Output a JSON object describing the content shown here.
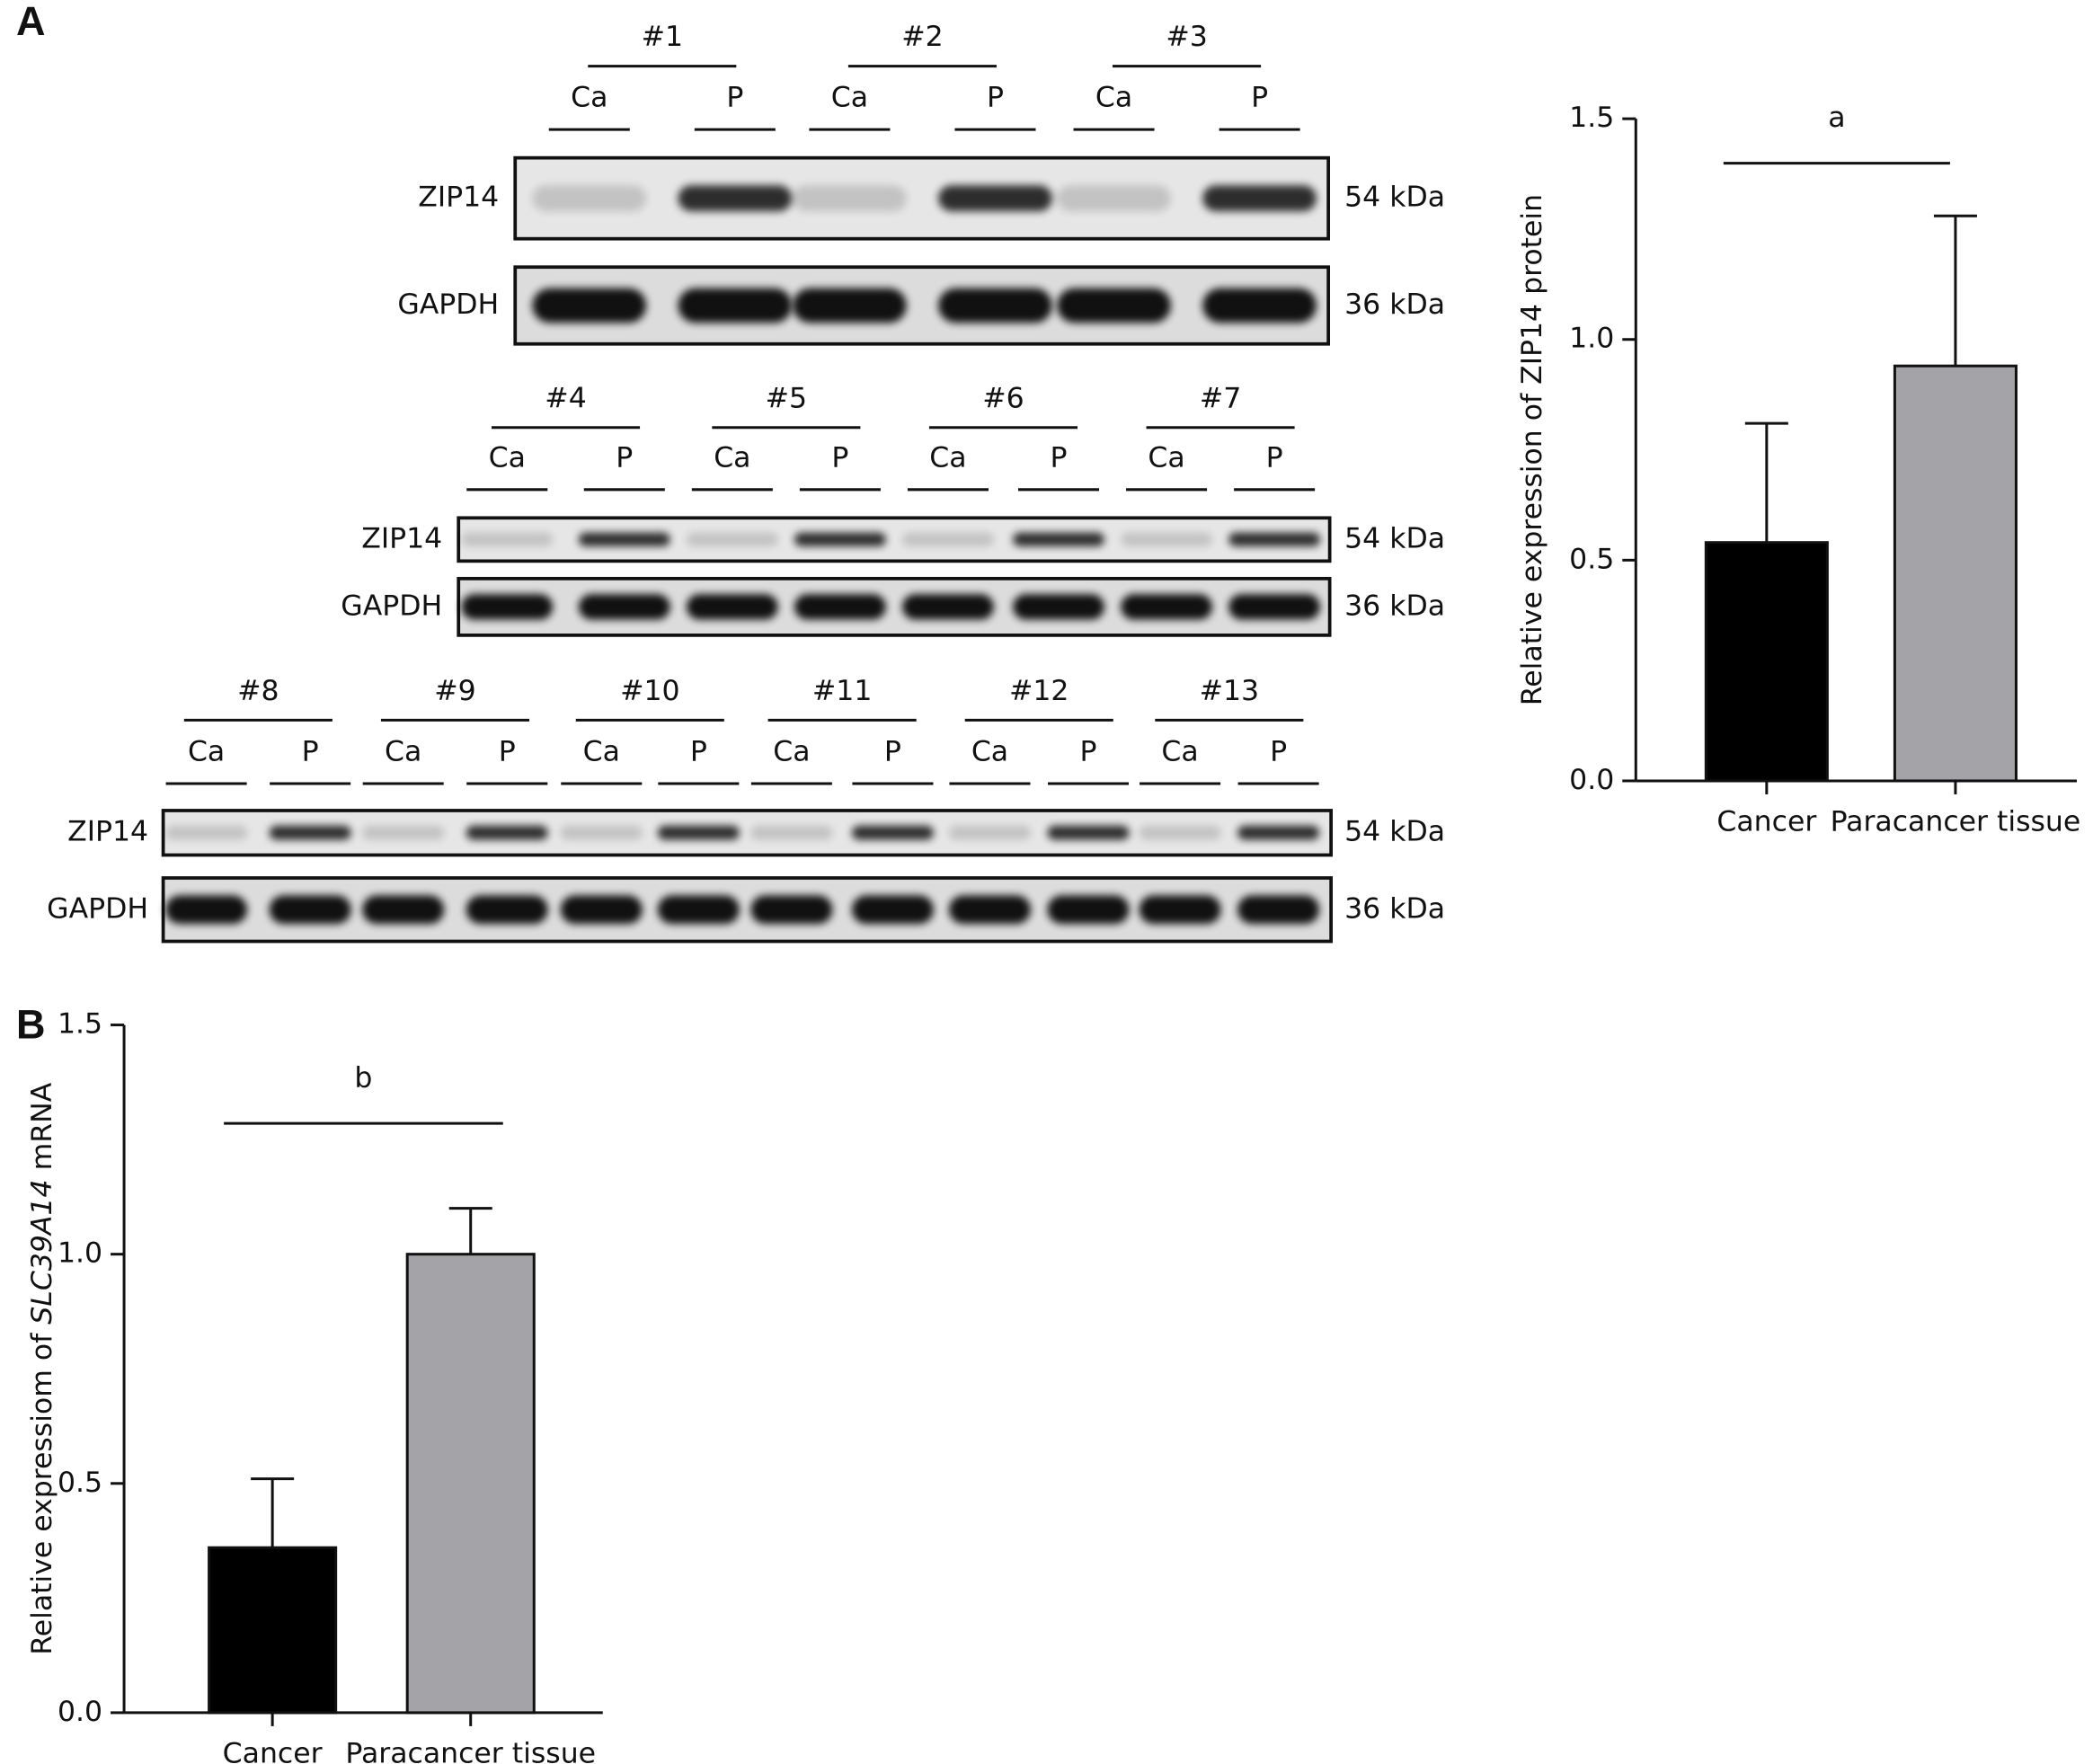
{
  "panels": [
    "A",
    "B"
  ],
  "blots": [
    {
      "samples": [
        {
          "name": "#1",
          "lanes": [
            "Ca",
            "P"
          ]
        },
        {
          "name": "#2",
          "lanes": [
            "Ca",
            "P"
          ]
        },
        {
          "name": "#3",
          "lanes": [
            "Ca",
            "P"
          ]
        }
      ],
      "proteins": [
        "ZIP14",
        "GAPDH"
      ],
      "sizes": [
        "54 kDa",
        "36 kDa"
      ]
    },
    {
      "samples": [
        {
          "name": "#4",
          "lanes": [
            "Ca",
            "P"
          ]
        },
        {
          "name": "#5",
          "lanes": [
            "Ca",
            "P"
          ]
        },
        {
          "name": "#6",
          "lanes": [
            "Ca",
            "P"
          ]
        },
        {
          "name": "#7",
          "lanes": [
            "Ca",
            "P"
          ]
        }
      ],
      "proteins": [
        "ZIP14",
        "GAPDH"
      ],
      "sizes": [
        "54 kDa",
        "36 kDa"
      ]
    },
    {
      "samples": [
        {
          "name": "#8",
          "lanes": [
            "Ca",
            "P"
          ]
        },
        {
          "name": "#9",
          "lanes": [
            "Ca",
            "P"
          ]
        },
        {
          "name": "#10",
          "lanes": [
            "Ca",
            "P"
          ]
        },
        {
          "name": "#11",
          "lanes": [
            "Ca",
            "P"
          ]
        },
        {
          "name": "#12",
          "lanes": [
            "Ca",
            "P"
          ]
        },
        {
          "name": "#13",
          "lanes": [
            "Ca",
            "P"
          ]
        }
      ],
      "proteins": [
        "ZIP14",
        "GAPDH"
      ],
      "sizes": [
        "54 kDa",
        "36 kDa"
      ]
    }
  ],
  "chart_data": [
    {
      "type": "bar",
      "y_label": [
        "Relative expression of ZIP14 protein"
      ],
      "annotation": "a",
      "categories": [
        "Cancer",
        "Paracancer tissue"
      ],
      "values": [
        0.54,
        0.94
      ],
      "errors": [
        0.27,
        0.34
      ],
      "colors": [
        "#000000",
        "#a3a3a8"
      ],
      "ylim": [
        0,
        1.5
      ],
      "yticks": [
        {
          "value": 0,
          "label": "0.0"
        },
        0.5,
        {
          "value": 1,
          "label": "1.0"
        },
        1.5
      ]
    },
    {
      "type": "bar",
      "y_label": [
        "Relative expressiom of ",
        "SLC39A14",
        " mRNA"
      ],
      "annotation": "b",
      "categories": [
        "Cancer",
        "Paracancer tissue"
      ],
      "values": [
        0.36,
        1.0
      ],
      "errors": [
        0.15,
        0.1
      ],
      "colors": [
        "#000000",
        "#a3a3a8"
      ],
      "ylim": [
        0,
        1.5
      ],
      "yticks": [
        {
          "value": 0,
          "label": "0.0"
        },
        0.5,
        {
          "value": 1,
          "label": "1.0"
        },
        1.5
      ]
    }
  ]
}
